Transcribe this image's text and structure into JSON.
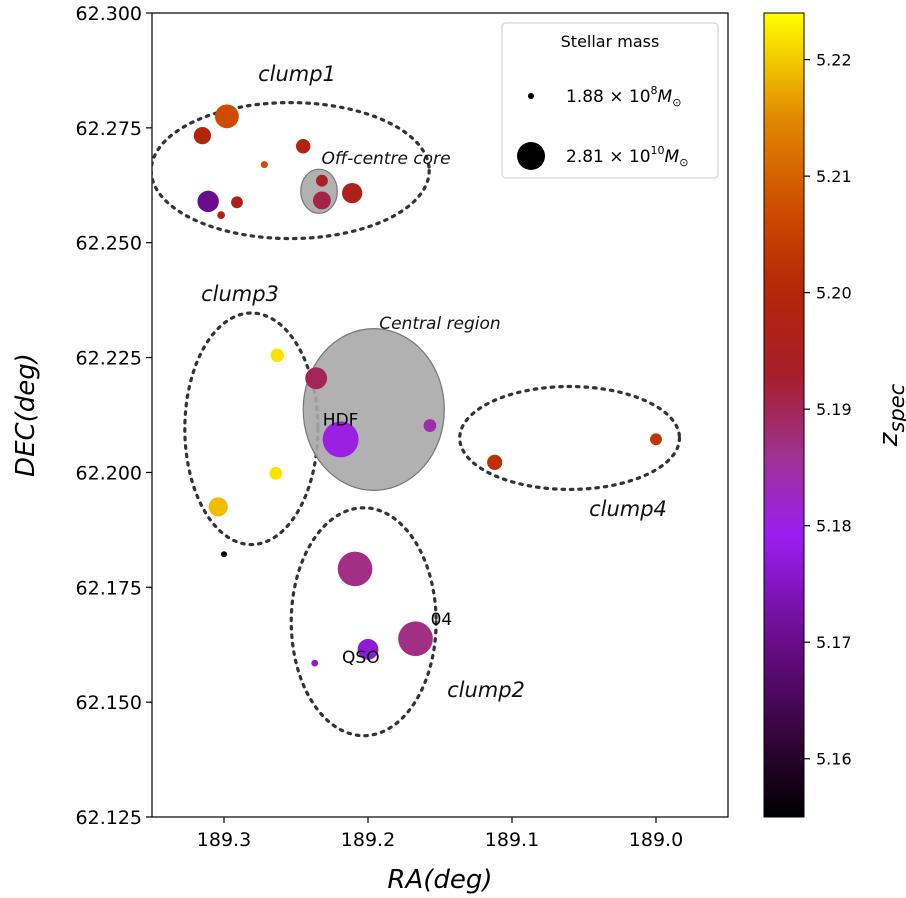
{
  "chart_data": {
    "type": "scatter",
    "xlabel": "RA(deg)",
    "ylabel": "DEC(deg)",
    "xlim": [
      189.35,
      188.95
    ],
    "ylim": [
      62.125,
      62.3
    ],
    "xticks": [
      "189.3",
      "189.2",
      "189.1",
      "189.0"
    ],
    "yticks": [
      "62.125",
      "62.150",
      "62.175",
      "62.200",
      "62.225",
      "62.250",
      "62.275",
      "62.300"
    ],
    "colorbar": {
      "label_main": "z",
      "label_sub": "spec",
      "range": [
        5.155,
        5.224
      ],
      "ticks": [
        "5.16",
        "5.17",
        "5.18",
        "5.19",
        "5.20",
        "5.21",
        "5.22"
      ],
      "colormap": "gnuplot"
    },
    "legend": {
      "title": "Stellar mass",
      "placement": "top-right",
      "entries": [
        {
          "coef": "1.88",
          "exp": "8",
          "unit": "M",
          "unit_sub": "⊙",
          "mass": 188000000.0
        },
        {
          "coef": "2.81",
          "exp": "10",
          "unit": "M",
          "unit_sub": "⊙",
          "mass": 28100000000.0
        }
      ]
    },
    "points": [
      {
        "ra": 189.298,
        "dec": 62.2775,
        "z": 5.207,
        "mass": 12000000000.0
      },
      {
        "ra": 189.315,
        "dec": 62.2733,
        "z": 5.199,
        "mass": 6000000000.0
      },
      {
        "ra": 189.245,
        "dec": 62.271,
        "z": 5.198,
        "mass": 4000000000.0
      },
      {
        "ra": 189.272,
        "dec": 62.267,
        "z": 5.207,
        "mass": 500000000.0
      },
      {
        "ra": 189.232,
        "dec": 62.2635,
        "z": 5.194,
        "mass": 2500000000.0
      },
      {
        "ra": 189.232,
        "dec": 62.2592,
        "z": 5.191,
        "mass": 6500000000.0
      },
      {
        "ra": 189.211,
        "dec": 62.2608,
        "z": 5.196,
        "mass": 8500000000.0
      },
      {
        "ra": 189.311,
        "dec": 62.259,
        "z": 5.17,
        "mass": 9500000000.0
      },
      {
        "ra": 189.291,
        "dec": 62.2588,
        "z": 5.195,
        "mass": 2500000000.0
      },
      {
        "ra": 189.302,
        "dec": 62.256,
        "z": 5.198,
        "mass": 700000000.0
      },
      {
        "ra": 189.263,
        "dec": 62.2255,
        "z": 5.222,
        "mass": 3500000000.0
      },
      {
        "ra": 189.236,
        "dec": 62.2205,
        "z": 5.19,
        "mass": 10000000000.0
      },
      {
        "ra": 189.157,
        "dec": 62.2102,
        "z": 5.184,
        "mass": 3000000000.0
      },
      {
        "ra": 189.219,
        "dec": 62.2072,
        "z": 5.18,
        "mass": 28100000000.0
      },
      {
        "ra": 189.264,
        "dec": 62.1998,
        "z": 5.222,
        "mass": 3000000000.0
      },
      {
        "ra": 189.304,
        "dec": 62.1925,
        "z": 5.219,
        "mass": 7500000000.0
      },
      {
        "ra": 189.3,
        "dec": 62.1822,
        "z": 5.155,
        "mass": 188000000.0
      },
      {
        "ra": 189.209,
        "dec": 62.179,
        "z": 5.187,
        "mass": 26000000000.0
      },
      {
        "ra": 189.167,
        "dec": 62.1638,
        "z": 5.187,
        "mass": 26000000000.0
      },
      {
        "ra": 189.2,
        "dec": 62.1615,
        "z": 5.177,
        "mass": 9000000000.0
      },
      {
        "ra": 189.237,
        "dec": 62.1585,
        "z": 5.177,
        "mass": 400000000.0
      },
      {
        "ra": 189.112,
        "dec": 62.2022,
        "z": 5.202,
        "mass": 4500000000.0
      },
      {
        "ra": 189.0,
        "dec": 62.2072,
        "z": 5.203,
        "mass": 2500000000.0
      }
    ],
    "regions": [
      {
        "name": "clump1",
        "label": "clump1",
        "cx": 189.254,
        "cy": 62.2657,
        "rx": 0.0965,
        "ry": 0.0148,
        "style": "dotted"
      },
      {
        "name": "clump3",
        "label": "clump3",
        "cx": 189.281,
        "cy": 62.2095,
        "rx": 0.0462,
        "ry": 0.0252,
        "style": "dotted"
      },
      {
        "name": "clump4",
        "label": "clump4",
        "cx": 189.06,
        "cy": 62.2075,
        "rx": 0.0763,
        "ry": 0.0112,
        "style": "dotted"
      },
      {
        "name": "clump2",
        "label": "clump2",
        "cx": 189.203,
        "cy": 62.1675,
        "rx": 0.0503,
        "ry": 0.0248,
        "style": "dotted"
      },
      {
        "name": "central-region",
        "label": "Central region",
        "cx": 189.196,
        "cy": 62.2137,
        "rx": 0.049,
        "ry": 0.0176,
        "style": "filled"
      },
      {
        "name": "off-centre-core",
        "label": "Off-centre core",
        "cx": 189.234,
        "cy": 62.2612,
        "rx": 0.0127,
        "ry": 0.0048,
        "style": "filled"
      }
    ],
    "annotations": [
      {
        "text": "HDF",
        "ra": 189.219,
        "dec": 62.2102
      },
      {
        "text": "QSO",
        "ra": 189.205,
        "dec": 62.1585
      },
      {
        "text": "04",
        "ra": 189.149,
        "dec": 62.1668
      }
    ]
  }
}
